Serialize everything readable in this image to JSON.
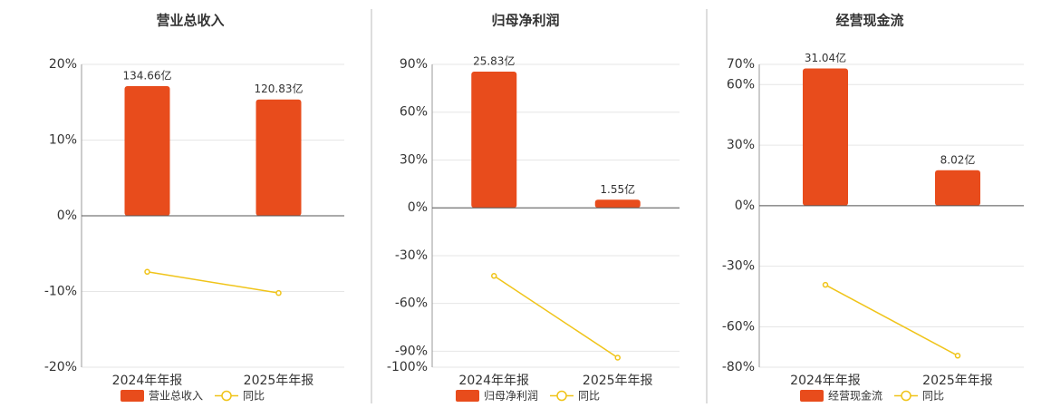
{
  "chart_data": [
    {
      "type": "combo",
      "title": "营业总收入",
      "categories": [
        "2024年年报",
        "2025年年报"
      ],
      "series": [
        {
          "name": "营业总收入",
          "color": "#e84c1c",
          "axis": "y2",
          "values": [
            134.66,
            120.83
          ],
          "value_labels": [
            "134.66亿",
            "120.83亿"
          ]
        },
        {
          "name": "同比",
          "color": "#f0c419",
          "values": [
            -7.4,
            -10.2
          ]
        }
      ],
      "ylim": [
        -20,
        20
      ],
      "yticks": [
        {
          "value": 20,
          "label": "20%"
        },
        {
          "value": 10,
          "label": "10%"
        },
        {
          "value": 0,
          "label": "0%"
        },
        {
          "value": -10,
          "label": "-10%"
        },
        {
          "value": -20,
          "label": "-20%"
        }
      ],
      "y2lim": [
        -157.3,
        157.3
      ],
      "grid": true
    },
    {
      "type": "combo",
      "title": "归母净利润",
      "categories": [
        "2024年年报",
        "2025年年报"
      ],
      "series": [
        {
          "name": "归母净利润",
          "color": "#e84c1c",
          "axis": "y2",
          "values": [
            25.83,
            1.55
          ],
          "value_labels": [
            "25.83亿",
            "1.55亿"
          ]
        },
        {
          "name": "同比",
          "color": "#f0c419",
          "values": [
            -42.7,
            -94
          ]
        }
      ],
      "ylim": [
        -100,
        90
      ],
      "yticks": [
        {
          "value": 90,
          "label": "90%"
        },
        {
          "value": 60,
          "label": "60%"
        },
        {
          "value": 30,
          "label": "30%"
        },
        {
          "value": 0,
          "label": "0%"
        },
        {
          "value": -30,
          "label": "-30%"
        },
        {
          "value": -60,
          "label": "-60%"
        },
        {
          "value": -90,
          "label": "-90%"
        },
        {
          "value": -100,
          "label": "-100%"
        }
      ],
      "y2lim": [
        -30.2,
        27.2
      ],
      "grid": true
    },
    {
      "type": "combo",
      "title": "经营现金流",
      "categories": [
        "2024年年报",
        "2025年年报"
      ],
      "series": [
        {
          "name": "经营现金流",
          "color": "#e84c1c",
          "axis": "y2",
          "values": [
            31.04,
            8.02
          ],
          "value_labels": [
            "31.04亿",
            "8.02亿"
          ]
        },
        {
          "name": "同比",
          "color": "#f0c419",
          "values": [
            -39.2,
            -74.3
          ]
        }
      ],
      "ylim": [
        -80,
        70
      ],
      "yticks": [
        {
          "value": 70,
          "label": "70%"
        },
        {
          "value": 60,
          "label": "60%"
        },
        {
          "value": 30,
          "label": "30%"
        },
        {
          "value": 0,
          "label": "0%"
        },
        {
          "value": -30,
          "label": "-30%"
        },
        {
          "value": -60,
          "label": "-60%"
        },
        {
          "value": -80,
          "label": "-80%"
        }
      ],
      "y2lim": [
        -36.5,
        31.95
      ],
      "grid": true
    }
  ]
}
